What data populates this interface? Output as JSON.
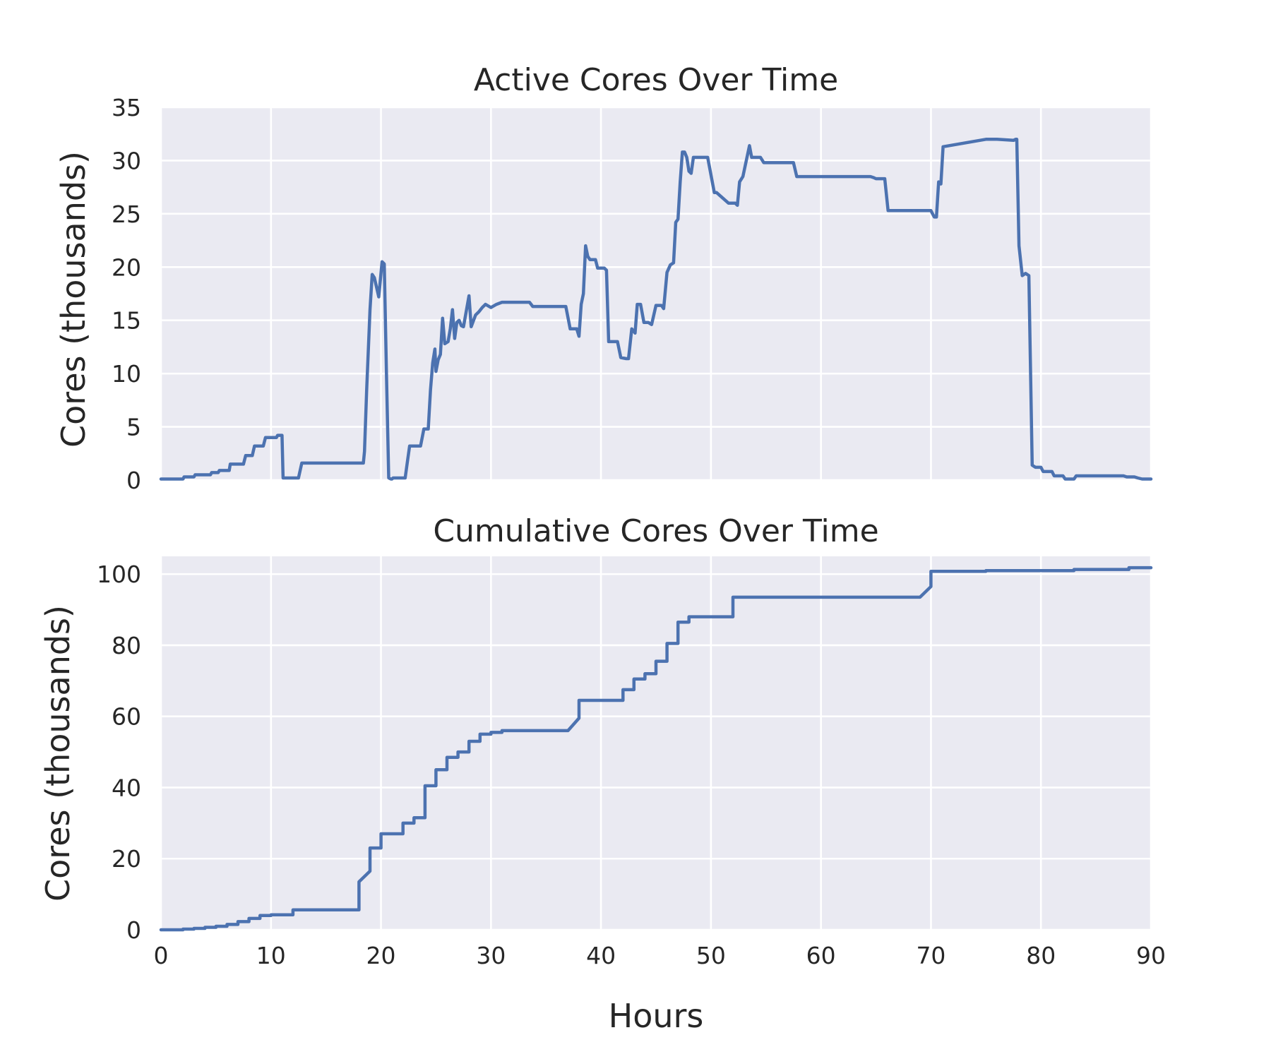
{
  "chart_data": [
    {
      "type": "line",
      "title": "Active Cores Over Time",
      "xlabel": "",
      "ylabel": "Cores (thousands)",
      "xlim": [
        0,
        90
      ],
      "ylim": [
        0,
        35
      ],
      "xticks": [
        0,
        10,
        20,
        30,
        40,
        50,
        60,
        70,
        80,
        90
      ],
      "yticks": [
        0,
        5,
        10,
        15,
        20,
        25,
        30,
        35
      ],
      "show_xtick_labels": false,
      "grid": true,
      "color": "#4c72b0",
      "series": [
        {
          "x": [
            0,
            2,
            2.1,
            3,
            3.1,
            4.5,
            4.6,
            5.2,
            5.3,
            6.2,
            6.3,
            7.5,
            7.7,
            8.3,
            8.5,
            9.3,
            9.5,
            10.5,
            10.6,
            11,
            11.1,
            12.5,
            12.8,
            18.4,
            18.5,
            18.7,
            19.0,
            19.2,
            19.4,
            19.8,
            20.1,
            20.3,
            20.5,
            20.7,
            20.9,
            21.0,
            21.1,
            22.2,
            22.4,
            22.6,
            22.8,
            23.6,
            23.9,
            24.3,
            24.5,
            24.7,
            24.9,
            25.0,
            25.2,
            25.4,
            25.6,
            25.8,
            26.1,
            26.3,
            26.5,
            26.7,
            26.9,
            27.1,
            27.3,
            27.5,
            28,
            28.2,
            28.6,
            28.9,
            29.2,
            29.5,
            30,
            30.5,
            31.0,
            31.4,
            31.8,
            33.5,
            33.8,
            36.5,
            36.8,
            37.2,
            37.5,
            37.8,
            38.0,
            38.2,
            38.4,
            38.6,
            38.8,
            39,
            39.5,
            39.7,
            40.3,
            40.5,
            40.7,
            41.2,
            41.5,
            41.8,
            42.3,
            42.5,
            42.8,
            43.1,
            43.3,
            43.6,
            43.9,
            44.3,
            44.6,
            45.0,
            45.5,
            45.7,
            46.0,
            46.3,
            46.6,
            46.8,
            47.0,
            47.2,
            47.4,
            47.6,
            47.8,
            48.0,
            48.2,
            48.4,
            48.8,
            49.5,
            49.7,
            50.3,
            50.5,
            51.6,
            51.8,
            52.2,
            52.4,
            52.6,
            52.9,
            53.5,
            53.7,
            54.5,
            54.8,
            57.5,
            57.8,
            64.5,
            64.8,
            65,
            65.8,
            66.1,
            70.0,
            70.3,
            70.5,
            70.7,
            70.9,
            71.1,
            75,
            76,
            77.5,
            77.7,
            77.8,
            78.0,
            78.3,
            78.6,
            78.9,
            79.2,
            79.5,
            80,
            80.2,
            81,
            81.2,
            82,
            82.2,
            83,
            83.2,
            87.5,
            87.8,
            88.5,
            88.8,
            89.2,
            90
          ],
          "y": [
            0.1,
            0.1,
            0.3,
            0.3,
            0.5,
            0.5,
            0.7,
            0.7,
            0.9,
            0.9,
            1.5,
            1.5,
            2.3,
            2.3,
            3.2,
            3.2,
            4.0,
            4.0,
            4.2,
            4.2,
            0.2,
            0.2,
            1.6,
            1.6,
            2.7,
            8.5,
            16.0,
            19.3,
            19.0,
            17.2,
            20.5,
            20.3,
            10.0,
            0.2,
            0.1,
            0.1,
            0.2,
            0.2,
            1.7,
            3.2,
            3.2,
            3.2,
            4.8,
            4.8,
            8.5,
            11.0,
            12.3,
            10.2,
            11.3,
            11.8,
            15.2,
            12.8,
            13.0,
            14.2,
            16.0,
            13.3,
            14.8,
            15.0,
            14.5,
            14.4,
            17.3,
            14.4,
            15.5,
            15.8,
            16.2,
            16.5,
            16.2,
            16.5,
            16.7,
            16.7,
            16.7,
            16.7,
            16.3,
            16.3,
            16.3,
            14.2,
            14.2,
            14.2,
            13.5,
            16.5,
            17.5,
            22.0,
            21.0,
            20.7,
            20.7,
            19.9,
            19.9,
            19.7,
            13.0,
            13.0,
            13.0,
            11.5,
            11.4,
            11.4,
            14.2,
            13.8,
            16.5,
            16.5,
            14.8,
            14.8,
            14.6,
            16.4,
            16.4,
            16.1,
            19.5,
            20.2,
            20.4,
            24.2,
            24.5,
            28.0,
            30.8,
            30.8,
            30.3,
            29.0,
            28.8,
            30.3,
            30.3,
            30.3,
            30.3,
            27.0,
            27.0,
            26.0,
            26.0,
            26.0,
            25.8,
            28.0,
            28.5,
            31.4,
            30.3,
            30.3,
            29.8,
            29.8,
            28.5,
            28.5,
            28.4,
            28.3,
            28.3,
            25.3,
            25.3,
            24.7,
            24.7,
            28.0,
            27.8,
            31.3,
            32.0,
            32.0,
            31.9,
            32.0,
            32.0,
            22.0,
            19.2,
            19.4,
            19.2,
            1.4,
            1.2,
            1.2,
            0.8,
            0.8,
            0.4,
            0.4,
            0.1,
            0.1,
            0.4,
            0.4,
            0.3,
            0.3,
            0.2,
            0.1,
            0.1
          ]
        }
      ]
    },
    {
      "type": "line",
      "title": "Cumulative Cores Over Time",
      "xlabel": "Hours",
      "ylabel": "Cores (thousands)",
      "xlim": [
        0,
        90
      ],
      "ylim": [
        0,
        105
      ],
      "xticks": [
        0,
        10,
        20,
        30,
        40,
        50,
        60,
        70,
        80,
        90
      ],
      "yticks": [
        0,
        20,
        40,
        60,
        80,
        100
      ],
      "show_xtick_labels": true,
      "grid": true,
      "color": "#4c72b0",
      "series": [
        {
          "x": [
            0,
            2,
            2,
            3,
            3,
            4,
            4,
            5,
            5,
            6,
            6,
            7,
            7,
            8,
            8,
            9,
            9,
            10,
            10,
            12,
            12,
            18,
            18,
            19,
            19,
            20,
            20,
            22,
            22,
            23,
            23,
            24,
            24,
            25,
            25,
            26,
            26,
            27,
            27,
            28,
            28,
            29,
            29,
            30,
            30,
            31,
            31,
            37,
            38,
            38,
            42,
            42,
            43,
            43,
            44,
            44,
            45,
            45,
            46,
            46,
            47,
            47,
            48,
            48,
            52,
            52,
            69,
            70,
            70,
            75,
            75,
            83,
            83,
            88,
            88,
            90
          ],
          "y": [
            0,
            0,
            0.2,
            0.2,
            0.4,
            0.4,
            0.7,
            0.7,
            1.0,
            1.0,
            1.5,
            1.5,
            2.3,
            2.3,
            3.2,
            3.2,
            4.0,
            4.0,
            4.2,
            4.2,
            5.6,
            5.6,
            13.5,
            16.5,
            23.0,
            23.0,
            27.0,
            27.0,
            30.0,
            30.0,
            31.5,
            31.5,
            40.5,
            40.5,
            45.0,
            45.0,
            48.5,
            48.5,
            50.0,
            50.0,
            53.0,
            53.0,
            55.0,
            55.0,
            55.5,
            55.5,
            56.0,
            56.0,
            59.5,
            64.5,
            64.5,
            67.5,
            67.5,
            70.5,
            70.5,
            72.0,
            72.0,
            75.5,
            75.5,
            80.5,
            80.5,
            86.5,
            86.5,
            88.0,
            88.0,
            93.5,
            93.5,
            96.5,
            100.8,
            100.8,
            101.0,
            101.0,
            101.3,
            101.3,
            101.8,
            101.8
          ]
        }
      ]
    }
  ]
}
